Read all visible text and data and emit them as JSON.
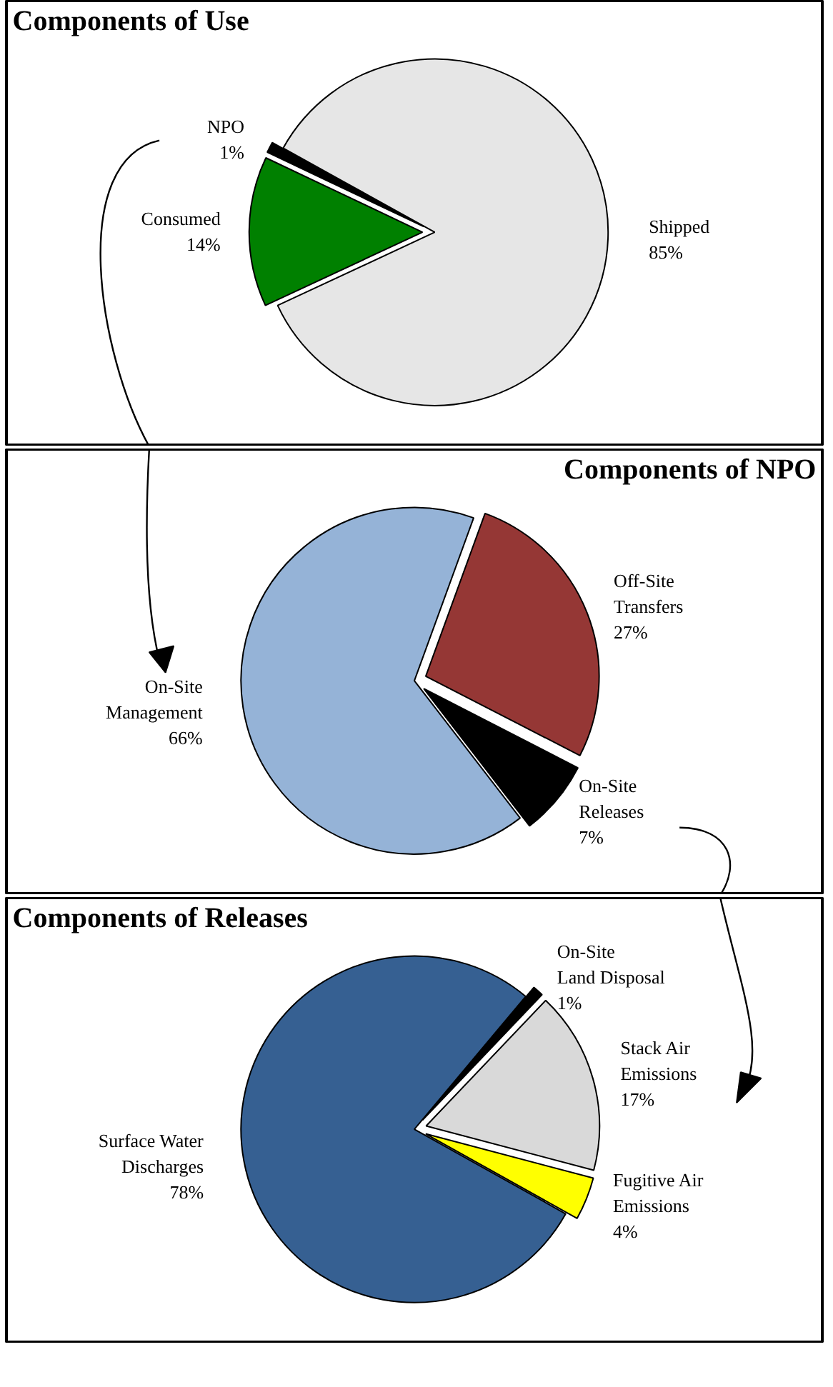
{
  "chart_data": [
    {
      "type": "pie",
      "title": "Components of Use",
      "categories": [
        "Shipped",
        "Consumed",
        "NPO"
      ],
      "values": [
        85,
        14,
        1
      ],
      "colors": [
        "#e6e6e6",
        "#008000",
        "#000000"
      ],
      "value_labels": [
        "85%",
        "14%",
        "1%"
      ]
    },
    {
      "type": "pie",
      "title": "Components of NPO",
      "categories": [
        "Off-Site\nTransfers",
        "On-Site\nReleases",
        "On-Site\nManagement"
      ],
      "values": [
        27,
        7,
        66
      ],
      "colors": [
        "#953735",
        "#000000",
        "#95b3d7"
      ],
      "value_labels": [
        "27%",
        "7%",
        "66%"
      ]
    },
    {
      "type": "pie",
      "title": "Components of Releases",
      "categories": [
        "On-Site\nLand Disposal",
        "Stack Air\nEmissions",
        "Fugitive Air\nEmissions",
        "Surface Water\nDischarges"
      ],
      "values": [
        1,
        17,
        4,
        78
      ],
      "colors": [
        "#000000",
        "#d9d9d9",
        "#ffff00",
        "#366092"
      ],
      "value_labels": [
        "1%",
        "17%",
        "4%",
        "78%"
      ]
    }
  ]
}
